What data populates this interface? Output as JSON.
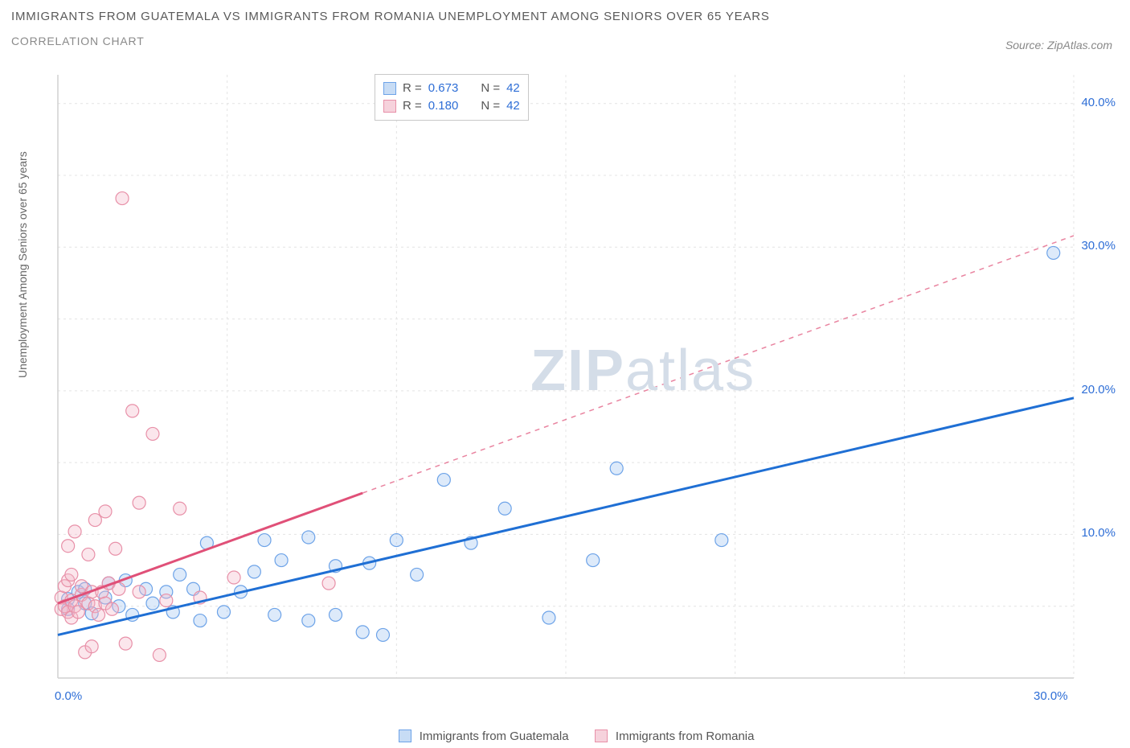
{
  "title": "Immigrants from Guatemala vs Immigrants from Romania Unemployment Among Seniors over 65 years",
  "subtitle": "Correlation Chart",
  "source": "Source: ZipAtlas.com",
  "ylabel": "Unemployment Among Seniors over 65 years",
  "watermark_bold": "ZIP",
  "watermark_rest": "atlas",
  "chart": {
    "type": "scatter",
    "xlim": [
      0,
      30
    ],
    "ylim": [
      0,
      42
    ],
    "xtick_labels": [
      "0.0%",
      "30.0%"
    ],
    "ytick_labels": [
      "10.0%",
      "20.0%",
      "30.0%",
      "40.0%"
    ],
    "ytick_values": [
      10,
      20,
      30,
      40
    ],
    "gridline_y_values": [
      5,
      10,
      15,
      20,
      25,
      30,
      35,
      40
    ],
    "gridline_x_values": [
      5,
      10,
      15,
      20,
      25,
      30
    ],
    "grid_color": "#e4e4e4",
    "grid_dash": "3,4",
    "axis_color": "#d0d0d0",
    "background_color": "#ffffff",
    "marker_radius": 8,
    "marker_stroke_width": 1.2,
    "marker_fill_opacity": 0.35,
    "series": [
      {
        "name": "Immigrants from Guatemala",
        "color_stroke": "#6da3e8",
        "color_fill": "#9ec4f0",
        "trend_color": "#1f6fd4",
        "trend_width": 3,
        "trend_solid_end_x": 30,
        "R": "0.673",
        "N": "42",
        "trend_start": [
          0,
          3.0
        ],
        "trend_end": [
          30,
          19.5
        ],
        "points": [
          [
            0.3,
            5.5
          ],
          [
            0.3,
            4.8
          ],
          [
            0.6,
            6.0
          ],
          [
            0.8,
            5.2
          ],
          [
            0.8,
            6.2
          ],
          [
            1.0,
            4.5
          ],
          [
            1.4,
            5.6
          ],
          [
            1.5,
            6.6
          ],
          [
            1.8,
            5.0
          ],
          [
            2.0,
            6.8
          ],
          [
            2.2,
            4.4
          ],
          [
            2.6,
            6.2
          ],
          [
            2.8,
            5.2
          ],
          [
            3.2,
            6.0
          ],
          [
            3.4,
            4.6
          ],
          [
            3.6,
            7.2
          ],
          [
            4.0,
            6.2
          ],
          [
            4.2,
            4.0
          ],
          [
            4.4,
            9.4
          ],
          [
            4.9,
            4.6
          ],
          [
            5.4,
            6.0
          ],
          [
            5.8,
            7.4
          ],
          [
            6.1,
            9.6
          ],
          [
            6.4,
            4.4
          ],
          [
            6.6,
            8.2
          ],
          [
            7.4,
            9.8
          ],
          [
            7.4,
            4.0
          ],
          [
            8.2,
            4.4
          ],
          [
            8.2,
            7.8
          ],
          [
            9.0,
            3.2
          ],
          [
            9.2,
            8.0
          ],
          [
            9.6,
            3.0
          ],
          [
            10.0,
            9.6
          ],
          [
            10.6,
            7.2
          ],
          [
            11.4,
            13.8
          ],
          [
            12.2,
            9.4
          ],
          [
            13.2,
            11.8
          ],
          [
            14.5,
            4.2
          ],
          [
            15.8,
            8.2
          ],
          [
            16.5,
            14.6
          ],
          [
            19.6,
            9.6
          ],
          [
            29.4,
            29.6
          ]
        ]
      },
      {
        "name": "Immigrants from Romania",
        "color_stroke": "#e890a8",
        "color_fill": "#f3b8c8",
        "trend_color": "#e05078",
        "trend_width": 3,
        "trend_solid_end_x": 9,
        "R": "0.180",
        "N": "42",
        "trend_start": [
          0,
          5.2
        ],
        "trend_end": [
          30,
          30.8
        ],
        "points": [
          [
            0.1,
            4.8
          ],
          [
            0.1,
            5.6
          ],
          [
            0.2,
            5.0
          ],
          [
            0.2,
            6.4
          ],
          [
            0.3,
            4.6
          ],
          [
            0.3,
            6.8
          ],
          [
            0.3,
            9.2
          ],
          [
            0.4,
            4.2
          ],
          [
            0.4,
            5.4
          ],
          [
            0.4,
            7.2
          ],
          [
            0.5,
            5.0
          ],
          [
            0.5,
            10.2
          ],
          [
            0.6,
            4.6
          ],
          [
            0.7,
            5.8
          ],
          [
            0.7,
            6.4
          ],
          [
            0.8,
            1.8
          ],
          [
            0.9,
            5.2
          ],
          [
            0.9,
            8.6
          ],
          [
            1.0,
            2.2
          ],
          [
            1.0,
            6.0
          ],
          [
            1.1,
            5.0
          ],
          [
            1.1,
            11.0
          ],
          [
            1.2,
            4.4
          ],
          [
            1.3,
            6.0
          ],
          [
            1.4,
            5.2
          ],
          [
            1.4,
            11.6
          ],
          [
            1.5,
            6.6
          ],
          [
            1.6,
            4.8
          ],
          [
            1.7,
            9.0
          ],
          [
            1.8,
            6.2
          ],
          [
            1.9,
            33.4
          ],
          [
            2.0,
            2.4
          ],
          [
            2.2,
            18.6
          ],
          [
            2.4,
            6.0
          ],
          [
            2.4,
            12.2
          ],
          [
            2.8,
            17.0
          ],
          [
            3.0,
            1.6
          ],
          [
            3.2,
            5.4
          ],
          [
            3.6,
            11.8
          ],
          [
            4.2,
            5.6
          ],
          [
            5.2,
            7.0
          ],
          [
            8.0,
            6.6
          ]
        ]
      }
    ]
  },
  "legend": {
    "series1_label": "Immigrants from Guatemala",
    "series2_label": "Immigrants from Romania",
    "sq1_fill": "#c7dcf5",
    "sq1_stroke": "#6da3e8",
    "sq2_fill": "#f6d2dc",
    "sq2_stroke": "#e890a8"
  }
}
